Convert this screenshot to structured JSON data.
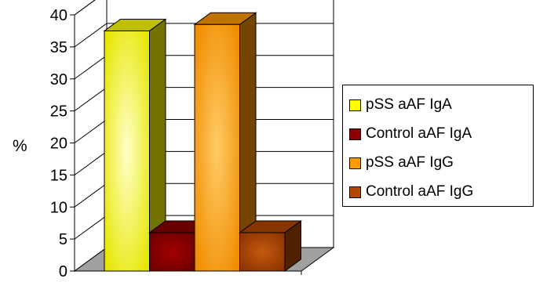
{
  "chart_data": {
    "type": "bar",
    "style": "3d-column",
    "ylabel": "%",
    "ylim": [
      0,
      40
    ],
    "yticks": [
      0,
      5,
      10,
      15,
      20,
      25,
      30,
      35,
      40
    ],
    "grid": true,
    "legend": "right",
    "series": [
      {
        "name": "pSS aAF IgA",
        "value": 37.5,
        "color": "#ffff00"
      },
      {
        "name": "Control aAF IgA",
        "value": 6,
        "color": "#8b0000"
      },
      {
        "name": "pSS aAF IgG",
        "value": 38.5,
        "color": "#ff9900"
      },
      {
        "name": "Control aAF IgG",
        "value": 6,
        "color": "#b34700"
      }
    ]
  }
}
